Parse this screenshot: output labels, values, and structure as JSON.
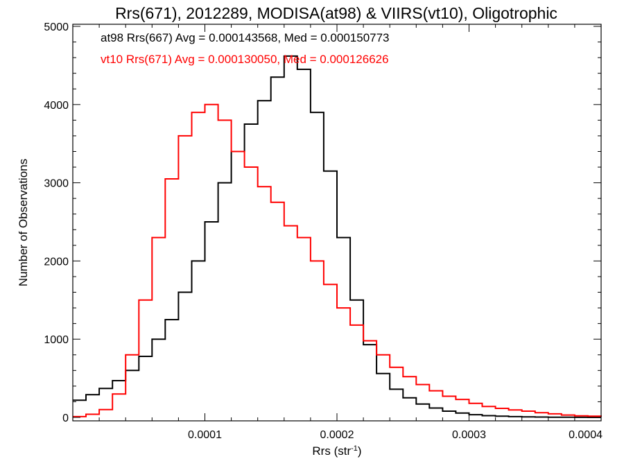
{
  "chart_data": {
    "type": "line",
    "title": "Rrs(671), 2012289, MODISA(at98) & VIIRS(vt10), Oligotrophic",
    "xlabel_base": "Rrs (str",
    "xlabel_sup": "-1",
    "xlabel_close": ")",
    "ylabel": "Number of Observations",
    "xlim": [
      0.0,
      0.0004
    ],
    "ylim": [
      0,
      5000
    ],
    "x_ticks": [
      0.0001,
      0.0002,
      0.0003,
      0.0004
    ],
    "x_tick_labels": [
      "0.0001",
      "0.0002",
      "0.0003",
      "0.0004"
    ],
    "y_ticks": [
      0,
      1000,
      2000,
      3000,
      4000,
      5000
    ],
    "y_tick_labels": [
      "0",
      "1000",
      "2000",
      "3000",
      "4000",
      "5000"
    ],
    "grid": false,
    "annotations": [
      {
        "text": "at98 Rrs(667) Avg = 0.000143568, Med = 0.000150773",
        "color": "#000000"
      },
      {
        "text": "vt10 Rrs(671) Avg = 0.000130050, Med = 0.000126626",
        "color": "#ff0000"
      }
    ],
    "series": [
      {
        "color": "#000000",
        "drawstyle": "steps",
        "x": [
          0.0,
          1e-05,
          2e-05,
          3e-05,
          4e-05,
          5e-05,
          6e-05,
          7e-05,
          8e-05,
          9e-05,
          0.0001,
          0.00011,
          0.00012,
          0.00013,
          0.00014,
          0.00015,
          0.00016,
          0.00017,
          0.00018,
          0.00019,
          0.0002,
          0.00021,
          0.00022,
          0.00023,
          0.00024,
          0.00025,
          0.00026,
          0.00027,
          0.00028,
          0.00029,
          0.0003,
          0.00031,
          0.00032,
          0.00033,
          0.00034,
          0.00035,
          0.00036,
          0.00037,
          0.00038,
          0.00039,
          0.0004
        ],
        "y": [
          220,
          290,
          370,
          470,
          600,
          780,
          1000,
          1250,
          1600,
          2000,
          2500,
          3000,
          3400,
          3750,
          4050,
          4350,
          4620,
          4450,
          3900,
          3150,
          2300,
          1500,
          930,
          560,
          360,
          250,
          170,
          120,
          80,
          55,
          35,
          22,
          15,
          10,
          6,
          4,
          3,
          2,
          1,
          0,
          0
        ]
      },
      {
        "color": "#ff0000",
        "drawstyle": "steps",
        "x": [
          0.0,
          1e-05,
          2e-05,
          3e-05,
          4e-05,
          5e-05,
          6e-05,
          7e-05,
          8e-05,
          9e-05,
          0.0001,
          0.00011,
          0.00012,
          0.00013,
          0.00014,
          0.00015,
          0.00016,
          0.00017,
          0.00018,
          0.00019,
          0.0002,
          0.00021,
          0.00022,
          0.00023,
          0.00024,
          0.00025,
          0.00026,
          0.00027,
          0.00028,
          0.00029,
          0.0003,
          0.00031,
          0.00032,
          0.00033,
          0.00034,
          0.00035,
          0.00036,
          0.00037,
          0.00038,
          0.00039,
          0.0004
        ],
        "y": [
          10,
          40,
          100,
          300,
          800,
          1500,
          2300,
          3050,
          3600,
          3900,
          4000,
          3800,
          3400,
          3200,
          2950,
          2750,
          2450,
          2300,
          2000,
          1700,
          1400,
          1180,
          980,
          800,
          640,
          520,
          420,
          340,
          270,
          230,
          180,
          140,
          115,
          95,
          80,
          60,
          45,
          30,
          20,
          15,
          10
        ]
      }
    ]
  }
}
